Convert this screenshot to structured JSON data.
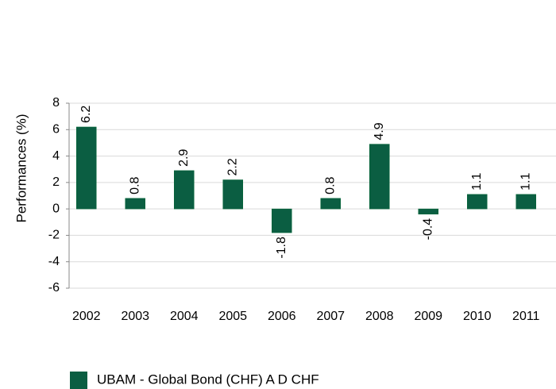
{
  "chart_data": {
    "type": "bar",
    "y_label": "Performances (%)",
    "categories": [
      "2002",
      "2003",
      "2004",
      "2005",
      "2006",
      "2007",
      "2008",
      "2009",
      "2010",
      "2011"
    ],
    "series": [
      {
        "name": "UBAM - Global Bond (CHF) A D CHF",
        "color": "#0b5e42",
        "values": [
          6.2,
          0.8,
          2.9,
          2.2,
          -1.8,
          0.8,
          4.9,
          -0.4,
          1.1,
          1.1
        ]
      }
    ],
    "ylim": [
      -6,
      8
    ],
    "yticks": [
      -6,
      -4,
      -2,
      0,
      2,
      4,
      6,
      8
    ],
    "grid": true,
    "legend": "bottom"
  }
}
